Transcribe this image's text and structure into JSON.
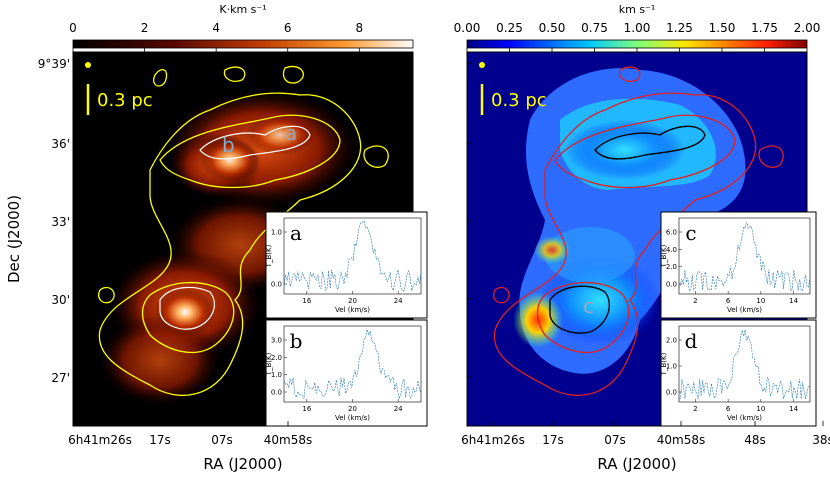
{
  "figure": {
    "y_axis_label": "Dec (J2000)",
    "dec_ticks": [
      "9°39'",
      "36'",
      "33'",
      "30'",
      "27'"
    ],
    "panels": [
      {
        "name": "left",
        "colorbar_label": "K·km s⁻¹",
        "colorbar_ticks": [
          "0",
          "2",
          "4",
          "6",
          "8"
        ],
        "ra_ticks": [
          "6h41m26s",
          "17s",
          "07s",
          "40m58s"
        ],
        "x_axis_label": "RA (J2000)",
        "scalebar": "0.3 pc",
        "region_labels": [
          "a",
          "b"
        ],
        "insets": [
          {
            "label": "a",
            "ylabel": "T_B(K)",
            "yticks": [
              "1.0",
              "0.0"
            ],
            "xticks": [
              "16",
              "20",
              "24"
            ],
            "xlabel": "Vel (km/s)"
          },
          {
            "label": "b",
            "ylabel": "T_B(K)",
            "yticks": [
              "3.0",
              "2.0",
              "1.0",
              "0.0"
            ],
            "xticks": [
              "16",
              "20",
              "24"
            ],
            "xlabel": "Vel (km/s)"
          }
        ]
      },
      {
        "name": "right",
        "colorbar_label": "km s⁻¹",
        "colorbar_ticks": [
          "0.00",
          "0.25",
          "0.50",
          "0.75",
          "1.00",
          "1.25",
          "1.50",
          "1.75",
          "2.00"
        ],
        "ra_ticks": [
          "6h41m26s",
          "17s",
          "07s",
          "40m58s",
          "48s",
          "38s"
        ],
        "x_axis_label": "RA (J2000)",
        "scalebar": "0.3 pc",
        "region_labels": [
          "c"
        ],
        "insets": [
          {
            "label": "c",
            "ylabel": "T_B(K)",
            "yticks": [
              "6.0",
              "4.0",
              "2.0",
              "0.0"
            ],
            "xticks": [
              "2",
              "6",
              "10",
              "14"
            ],
            "xlabel": "Vel (km/s)"
          },
          {
            "label": "d",
            "ylabel": "T_B(K)",
            "yticks": [
              "2.0",
              "1.0",
              "0.0"
            ],
            "xticks": [
              "2",
              "6",
              "10",
              "14"
            ],
            "xlabel": "Vel (km/s)"
          }
        ]
      }
    ],
    "left_extra_ra_ticks": [
      "48s",
      "38s"
    ],
    "colors": {
      "contour_left": "#ffff00",
      "contour_right": "#e02020",
      "scalebar": "#ffff00",
      "spectrum": "#1f77b4"
    }
  }
}
